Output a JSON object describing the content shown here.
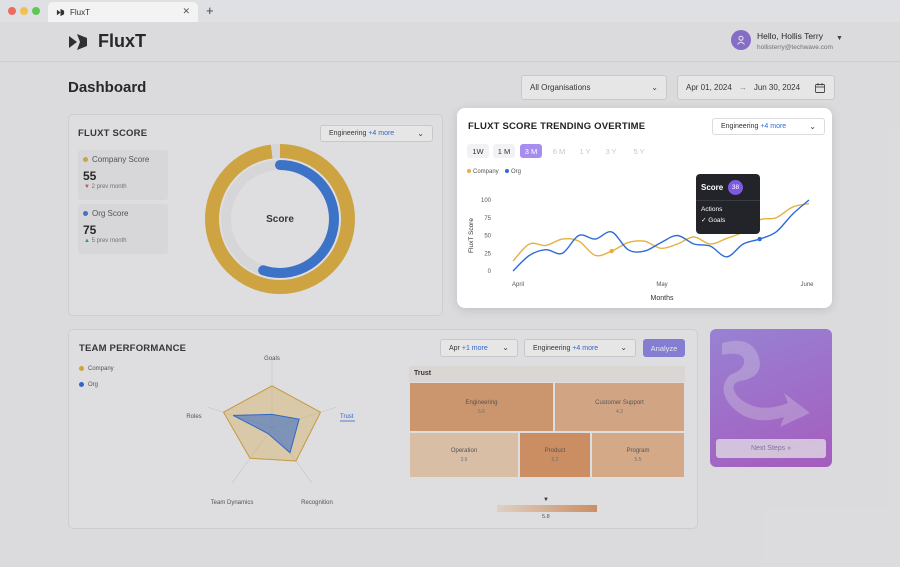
{
  "browser": {
    "tab_title": "FluxT",
    "tab_close": "✕",
    "new_tab": "+"
  },
  "app": {
    "name": "FluxT",
    "user": {
      "greeting": "Hello, Hollis Terry",
      "email": "hollisterry@techwave.com",
      "initial": ""
    }
  },
  "page": {
    "title": "Dashboard",
    "org_filter": "All Organisations",
    "date_start": "Apr 01, 2024",
    "date_arrow": "→",
    "date_end": "Jun 30, 2024"
  },
  "score_card": {
    "title": "FLUXT SCORE",
    "filter_main": "Engineering",
    "filter_more": "+4 more",
    "company_label": "Company Score",
    "company_value": "55",
    "company_delta": "2 prev month",
    "org_label": "Org Score",
    "org_value": "75",
    "org_delta": "5 prev month",
    "donut_label": "Score",
    "company_pct": 0.98,
    "org_pct": 0.55
  },
  "trend_card": {
    "title": "FLUXT SCORE TRENDING OVERTIME",
    "filter_main": "Engineering",
    "filter_more": "+4 more",
    "ranges": [
      "1W",
      "1 M",
      "3 M",
      "6 M",
      "1 Y",
      "3 Y",
      "5 Y"
    ],
    "active_range": "3 M",
    "legend": [
      "Company",
      "Org"
    ]
  },
  "chart_data": {
    "type": "line",
    "xlabel": "Months",
    "ylabel": "FluxT Score",
    "x_ticks": [
      "April",
      "May",
      "June"
    ],
    "y_ticks": [
      0,
      25,
      50,
      75,
      100
    ],
    "ylim": [
      0,
      100
    ],
    "series": [
      {
        "name": "Company",
        "color": "#e4b13f",
        "values": [
          14,
          38,
          36,
          45,
          42,
          22,
          28,
          40,
          42,
          32,
          38,
          48,
          38,
          46,
          55,
          72,
          75,
          90,
          95
        ]
      },
      {
        "name": "Org",
        "color": "#2e6bd8",
        "values": [
          0,
          22,
          30,
          25,
          50,
          45,
          55,
          30,
          28,
          40,
          50,
          38,
          35,
          20,
          38,
          45,
          55,
          80,
          100
        ]
      }
    ],
    "markers": [
      {
        "series": "Company",
        "index": 6
      },
      {
        "series": "Org",
        "index": 15
      }
    ]
  },
  "tooltip": {
    "title": "Score",
    "value": "38",
    "section": "Actions",
    "item": "Goals",
    "check": "✓"
  },
  "team_card": {
    "title": "TEAM PERFORMANCE",
    "legend": [
      "Company",
      "Org"
    ],
    "radar_axes": [
      "Goals",
      "Trust",
      "Recognition",
      "Team Dynamics",
      "Roles"
    ],
    "active_axis": "Trust",
    "radar_company": [
      0.62,
      0.75,
      0.6,
      0.55,
      0.75
    ],
    "radar_org": [
      0.2,
      0.42,
      0.45,
      0.1,
      0.6
    ],
    "period_filter": "Apr",
    "period_more": "+1 more",
    "team_filter": "Engineering",
    "team_more": "+4 more",
    "analyze": "Analyze"
  },
  "treemap": {
    "title": "Trust",
    "cells": [
      {
        "name": "Engineering",
        "value": "6.6",
        "color": "#e0a273"
      },
      {
        "name": "Customer Support",
        "value": "4.3",
        "color": "#e7b48b"
      },
      {
        "name": "Operation",
        "value": "3.6",
        "color": "#f0d1b4"
      },
      {
        "name": "Product",
        "value": "6.2",
        "color": "#e09966"
      },
      {
        "name": "Program",
        "value": "5.5",
        "color": "#e9b991"
      }
    ],
    "scale_value": "5.8",
    "scale_marker": "▼"
  },
  "side_card": {
    "button": "Next Steps",
    "button_icon": "»"
  }
}
